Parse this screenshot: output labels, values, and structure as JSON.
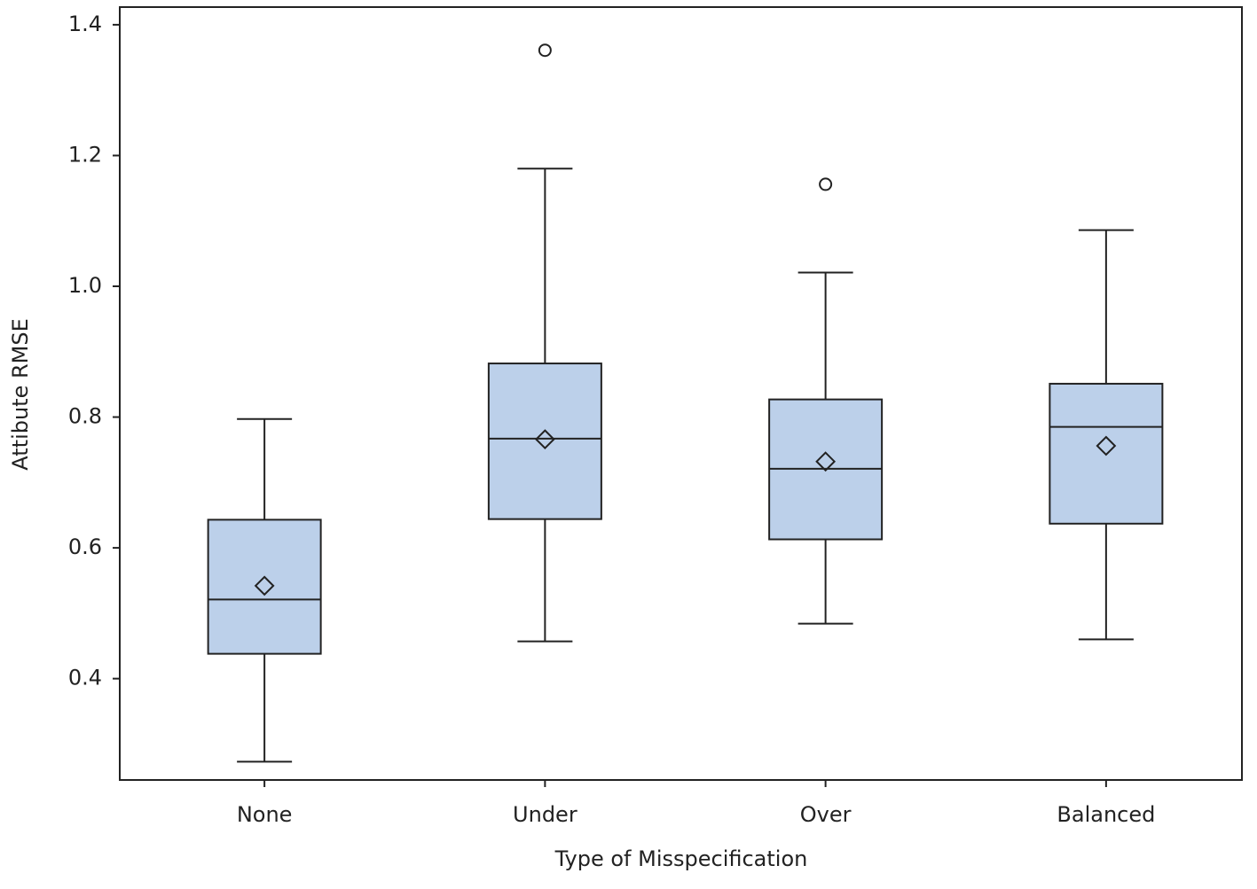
{
  "chart_data": {
    "type": "box",
    "x_label": "Type of Misspecification",
    "y_label": "Attibute RMSE",
    "categories": [
      "None",
      "Under",
      "Over",
      "Balanced"
    ],
    "min": [
      0.273,
      0.457,
      0.484,
      0.46
    ],
    "q1": [
      0.438,
      0.644,
      0.613,
      0.637
    ],
    "median": [
      0.521,
      0.767,
      0.721,
      0.785
    ],
    "q3": [
      0.643,
      0.882,
      0.827,
      0.851
    ],
    "max": [
      0.797,
      1.18,
      1.021,
      1.086
    ],
    "mean": [
      0.542,
      0.766,
      0.732,
      0.756
    ],
    "outliers": [
      [],
      [
        1.361
      ],
      [
        1.156
      ],
      []
    ],
    "color": "#bcd0ea",
    "ylim": [
      0.245,
      1.427
    ],
    "yticks": [
      0.4,
      0.6,
      0.8,
      {
        "value": 1,
        "label": "1.0"
      },
      1.2,
      1.4
    ]
  }
}
